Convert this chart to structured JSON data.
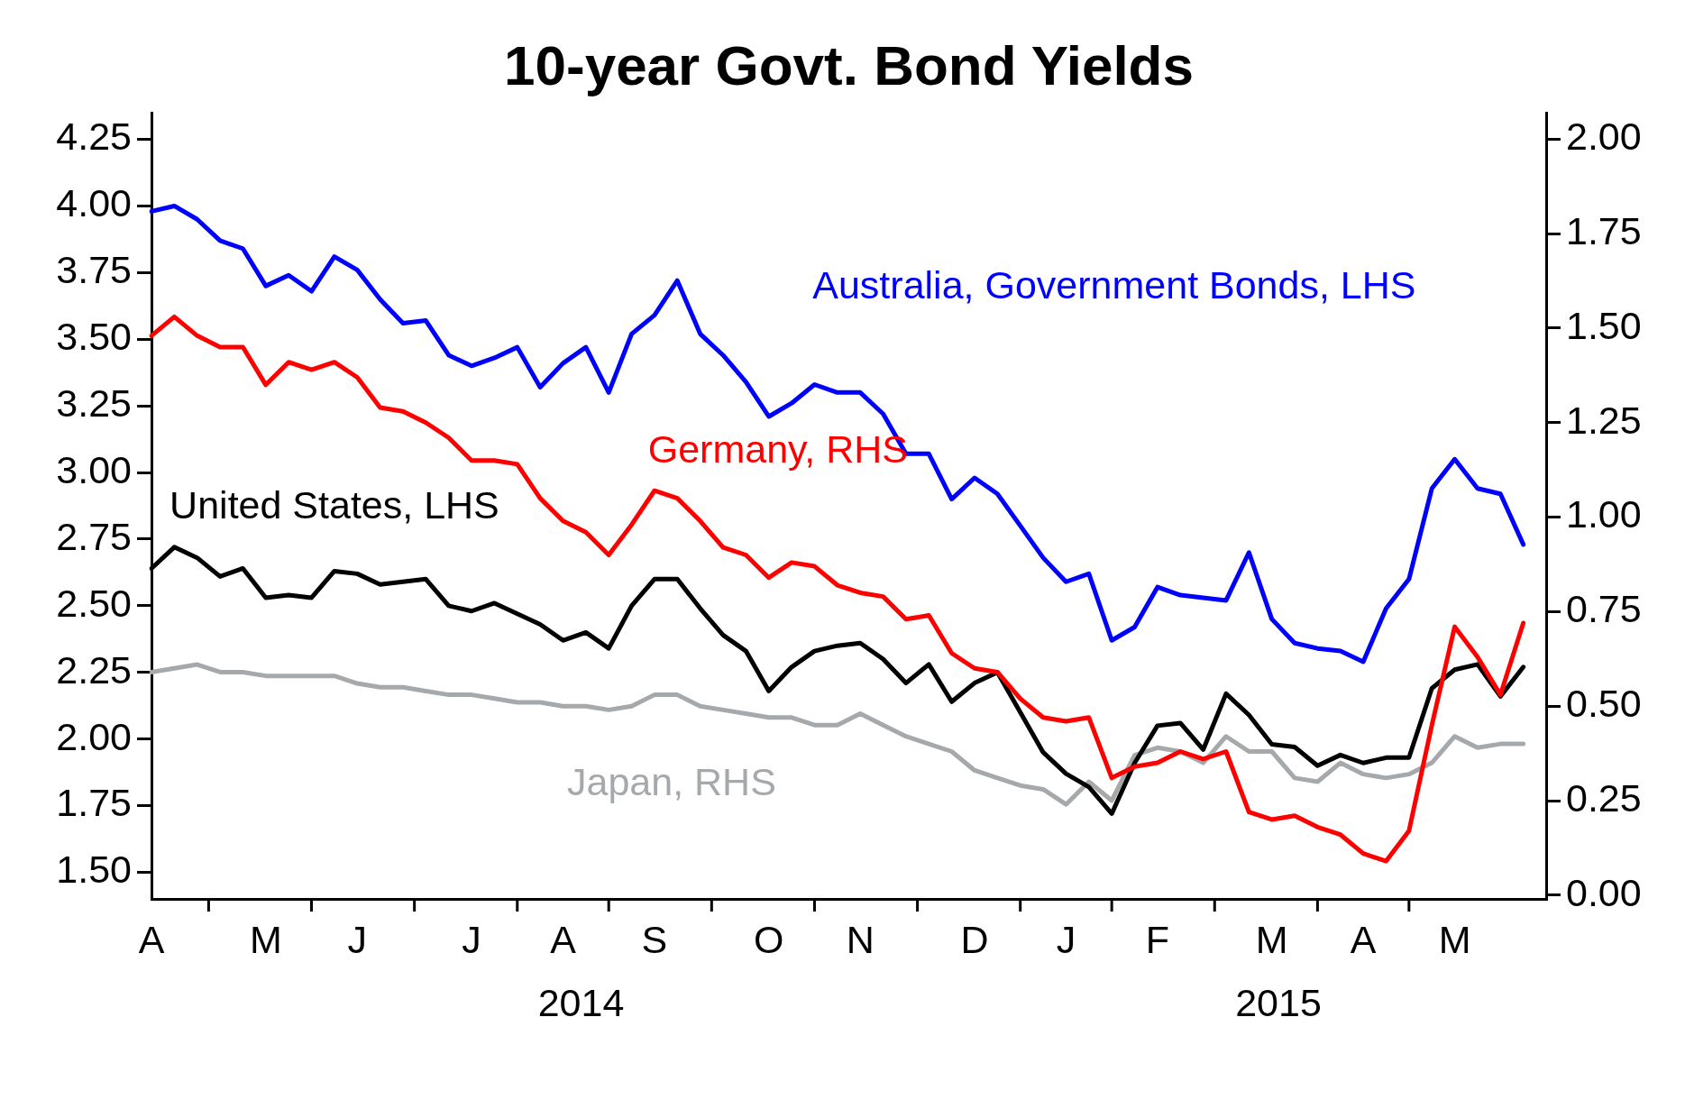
{
  "chart_data": {
    "type": "line",
    "title": "10-year Govt. Bond Yields",
    "categories": [
      "A",
      null,
      null,
      null,
      null,
      "M",
      null,
      null,
      null,
      "J",
      null,
      null,
      null,
      null,
      "J",
      null,
      null,
      null,
      "A",
      null,
      null,
      null,
      "S",
      null,
      null,
      null,
      null,
      "O",
      null,
      null,
      null,
      "N",
      null,
      null,
      null,
      null,
      "D",
      null,
      null,
      null,
      "J",
      null,
      null,
      null,
      "F",
      null,
      null,
      null,
      null,
      "M",
      null,
      null,
      null,
      "A",
      null,
      null,
      null,
      "M",
      null,
      null,
      null,
      null
    ],
    "ylim": [
      1.4,
      4.35
    ],
    "yticks": [
      {
        "value": 1.5,
        "label": "1.50"
      },
      {
        "value": 1.75,
        "label": "1.75"
      },
      {
        "value": 2,
        "label": "2.00"
      },
      {
        "value": 2.25,
        "label": "2.25"
      },
      {
        "value": 2.5,
        "label": "2.50"
      },
      {
        "value": 2.75,
        "label": "2.75"
      },
      {
        "value": 3,
        "label": "3.00"
      },
      {
        "value": 3.25,
        "label": "3.25"
      },
      {
        "value": 3.5,
        "label": "3.50"
      },
      {
        "value": 3.75,
        "label": "3.75"
      },
      {
        "value": 4,
        "label": "4.00"
      },
      {
        "value": 4.25,
        "label": "4.25"
      }
    ],
    "y2lim": [
      -0.01,
      2.07
    ],
    "y2ticks": [
      {
        "value": 0,
        "label": "0.00"
      },
      {
        "value": 0.25,
        "label": "0.25"
      },
      {
        "value": 0.5,
        "label": "0.50"
      },
      {
        "value": 0.75,
        "label": "0.75"
      },
      {
        "value": 1,
        "label": "1.00"
      },
      {
        "value": 1.25,
        "label": "1.25"
      },
      {
        "value": 1.5,
        "label": "1.50"
      },
      {
        "value": 1.75,
        "label": "1.75"
      },
      {
        "value": 2,
        "label": "2.00"
      }
    ],
    "annotations": [
      "2014",
      "2015"
    ],
    "series": [
      {
        "name": "Australia, Government Bonds, LHS",
        "color": "#0000ff",
        "values": [
          3.98,
          4.0,
          3.95,
          3.87,
          3.84,
          3.7,
          3.74,
          3.68,
          3.81,
          3.76,
          3.65,
          3.56,
          3.57,
          3.44,
          3.4,
          3.43,
          3.47,
          3.32,
          3.41,
          3.47,
          3.3,
          3.52,
          3.59,
          3.72,
          3.52,
          3.44,
          3.34,
          3.21,
          3.26,
          3.33,
          3.3,
          3.3,
          3.22,
          3.07,
          3.07,
          2.9,
          2.98,
          2.92,
          2.8,
          2.68,
          2.59,
          2.62,
          2.37,
          2.42,
          2.57,
          2.54,
          2.53,
          2.52,
          2.7,
          2.45,
          2.36,
          2.34,
          2.33,
          2.29,
          2.49,
          2.6,
          2.94,
          3.05,
          2.94,
          2.92,
          2.73,
          null
        ]
      },
      {
        "name": "Germany, RHS",
        "color": "#ff0000",
        "axis": "y2",
        "values": [
          1.48,
          1.53,
          1.48,
          1.45,
          1.45,
          1.35,
          1.41,
          1.39,
          1.41,
          1.37,
          1.29,
          1.28,
          1.25,
          1.21,
          1.15,
          1.15,
          1.14,
          1.05,
          0.99,
          0.96,
          0.9,
          0.98,
          1.07,
          1.05,
          0.99,
          0.92,
          0.9,
          0.84,
          0.88,
          0.87,
          0.82,
          0.8,
          0.79,
          0.73,
          0.74,
          0.64,
          0.6,
          0.59,
          0.52,
          0.47,
          0.46,
          0.47,
          0.31,
          0.34,
          0.35,
          0.38,
          0.36,
          0.38,
          0.22,
          0.2,
          0.21,
          0.18,
          0.16,
          0.11,
          0.09,
          0.17,
          0.45,
          0.71,
          0.63,
          0.53,
          0.72,
          null
        ]
      },
      {
        "name": "United States, LHS",
        "color": "#000000",
        "values": [
          2.64,
          2.72,
          2.68,
          2.61,
          2.64,
          2.53,
          2.54,
          2.53,
          2.63,
          2.62,
          2.58,
          2.59,
          2.6,
          2.5,
          2.48,
          2.51,
          2.47,
          2.43,
          2.37,
          2.4,
          2.34,
          2.5,
          2.6,
          2.6,
          2.49,
          2.39,
          2.33,
          2.18,
          2.27,
          2.33,
          2.35,
          2.36,
          2.3,
          2.21,
          2.28,
          2.14,
          2.21,
          2.25,
          2.1,
          1.95,
          1.87,
          1.82,
          1.72,
          1.91,
          2.05,
          2.06,
          1.96,
          2.17,
          2.09,
          1.98,
          1.97,
          1.9,
          1.94,
          1.91,
          1.93,
          1.93,
          2.19,
          2.26,
          2.28,
          2.16,
          2.27,
          null
        ]
      },
      {
        "name": "Japan, RHS",
        "color": "#a6a9ab",
        "axis": "y2",
        "values": [
          0.59,
          0.6,
          0.61,
          0.59,
          0.59,
          0.58,
          0.58,
          0.58,
          0.58,
          0.56,
          0.55,
          0.55,
          0.54,
          0.53,
          0.53,
          0.52,
          0.51,
          0.51,
          0.5,
          0.5,
          0.49,
          0.5,
          0.53,
          0.53,
          0.5,
          0.49,
          0.48,
          0.47,
          0.47,
          0.45,
          0.45,
          0.48,
          0.45,
          0.42,
          0.4,
          0.38,
          0.33,
          0.31,
          0.29,
          0.28,
          0.24,
          0.3,
          0.25,
          0.37,
          0.39,
          0.38,
          0.35,
          0.42,
          0.38,
          0.38,
          0.31,
          0.3,
          0.35,
          0.32,
          0.31,
          0.32,
          0.35,
          0.42,
          0.39,
          0.4,
          0.4,
          null
        ]
      }
    ]
  }
}
